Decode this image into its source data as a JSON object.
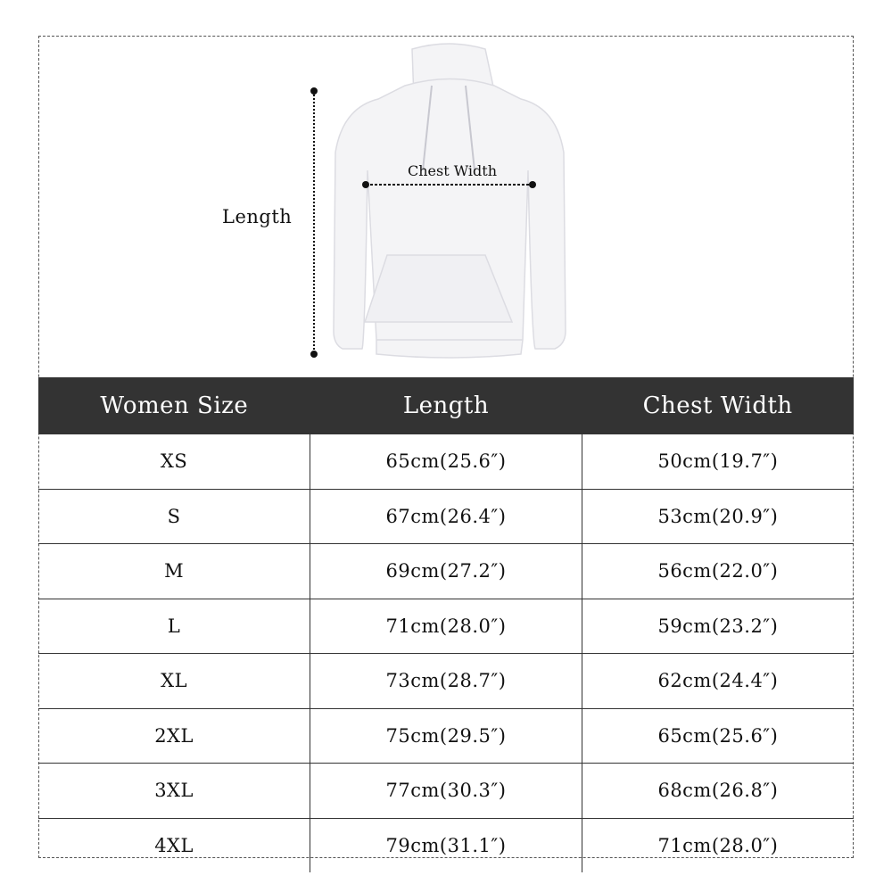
{
  "figure": {
    "length_label": "Length",
    "chest_label": "Chest Width"
  },
  "table": {
    "headers": [
      "Women Size",
      "Length",
      "Chest Width"
    ],
    "rows": [
      [
        "XS",
        "65cm(25.6″)",
        "50cm(19.7″)"
      ],
      [
        "S",
        "67cm(26.4″)",
        "53cm(20.9″)"
      ],
      [
        "M",
        "69cm(27.2″)",
        "56cm(22.0″)"
      ],
      [
        "L",
        "71cm(28.0″)",
        "59cm(23.2″)"
      ],
      [
        "XL",
        "73cm(28.7″)",
        "62cm(24.4″)"
      ],
      [
        "2XL",
        "75cm(29.5″)",
        "65cm(25.6″)"
      ],
      [
        "3XL",
        "77cm(30.3″)",
        "68cm(26.8″)"
      ],
      [
        "4XL",
        "79cm(31.1″)",
        "71cm(28.0″)"
      ]
    ]
  },
  "colors": {
    "header_bg": "#333333",
    "header_text": "#ffffff"
  }
}
